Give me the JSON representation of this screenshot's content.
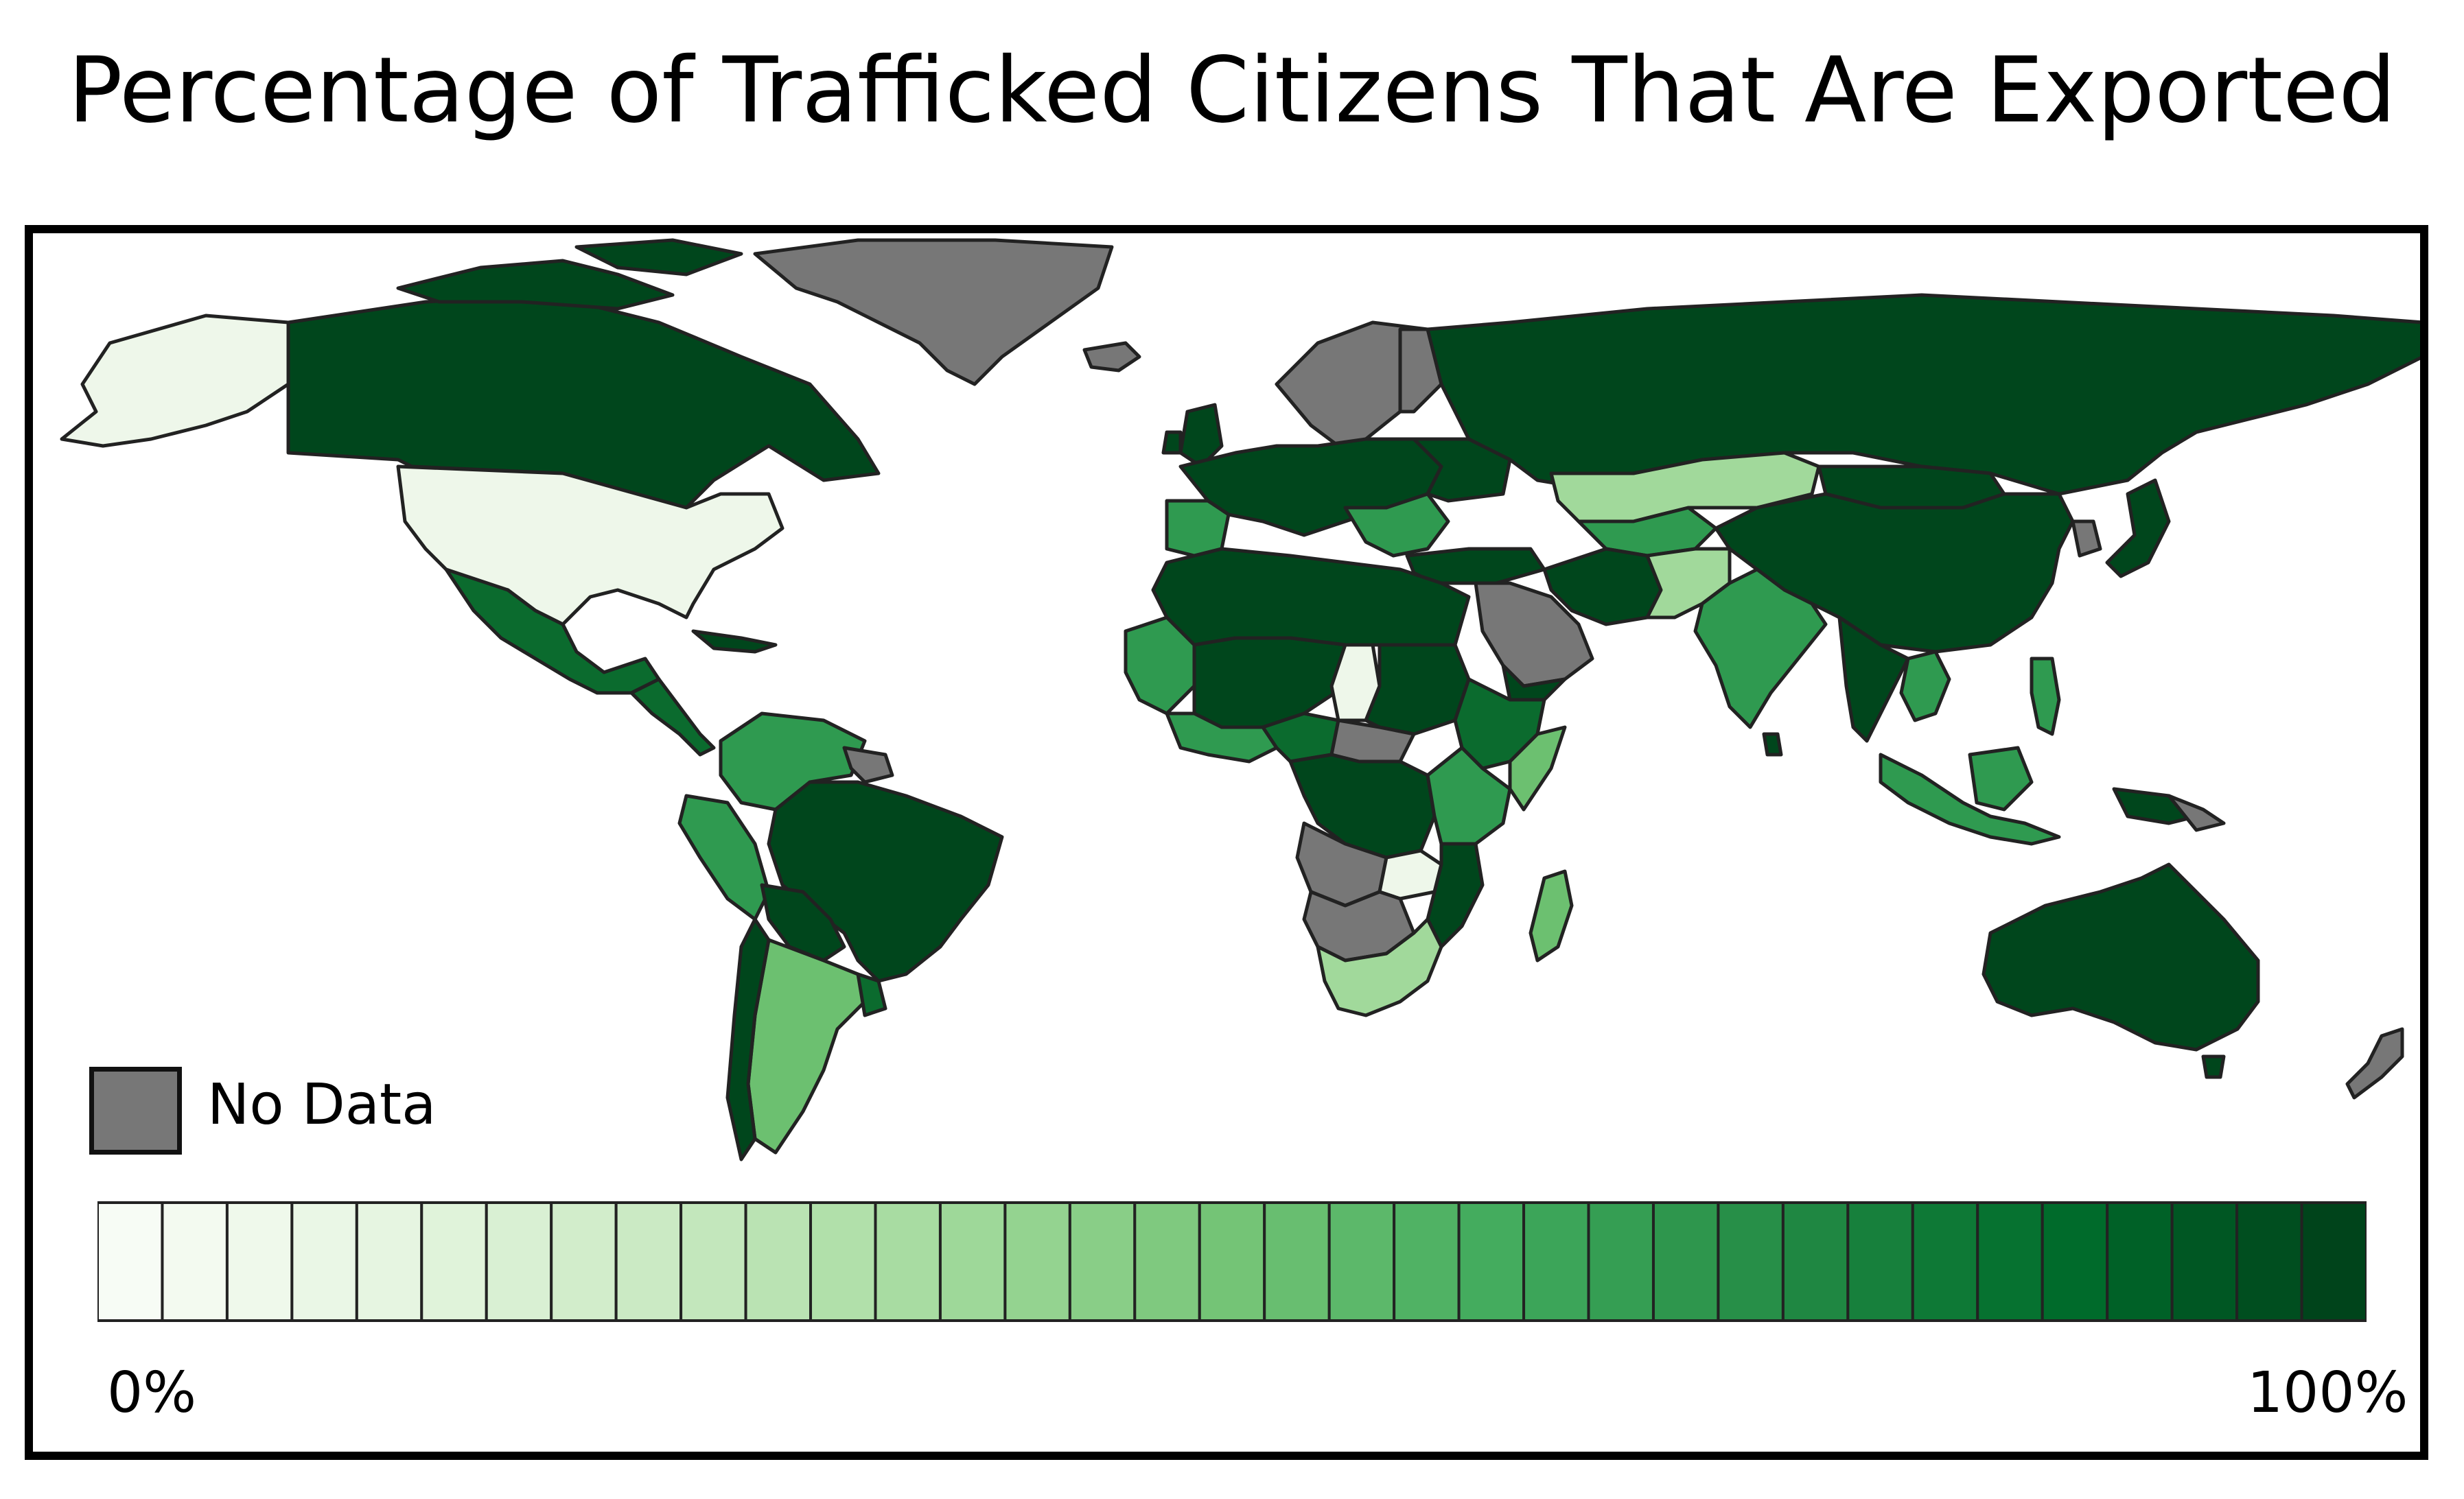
{
  "title": "Percentage of Trafficked Citizens That Are Exported",
  "legend": {
    "no_data_label": "No Data",
    "no_data_color": "#777777",
    "scale_min_label": "0%",
    "scale_max_label": "100%",
    "scale_steps": 35,
    "scale_colors": [
      "#f7fcf5",
      "#e5f5e0",
      "#c7e9c0",
      "#a1d99b",
      "#74c476",
      "#41ab5d",
      "#238b45",
      "#006d2c",
      "#00441b"
    ]
  },
  "map_colors": {
    "ocean": "#ffffff",
    "border": "#222222",
    "very_light": "#eef7ea",
    "light": "#a1d99b",
    "medium": "#6cc070",
    "medium_dark": "#2f9a50",
    "dark": "#0b6b2e",
    "darkest": "#00461c",
    "no_data": "#777777"
  }
}
